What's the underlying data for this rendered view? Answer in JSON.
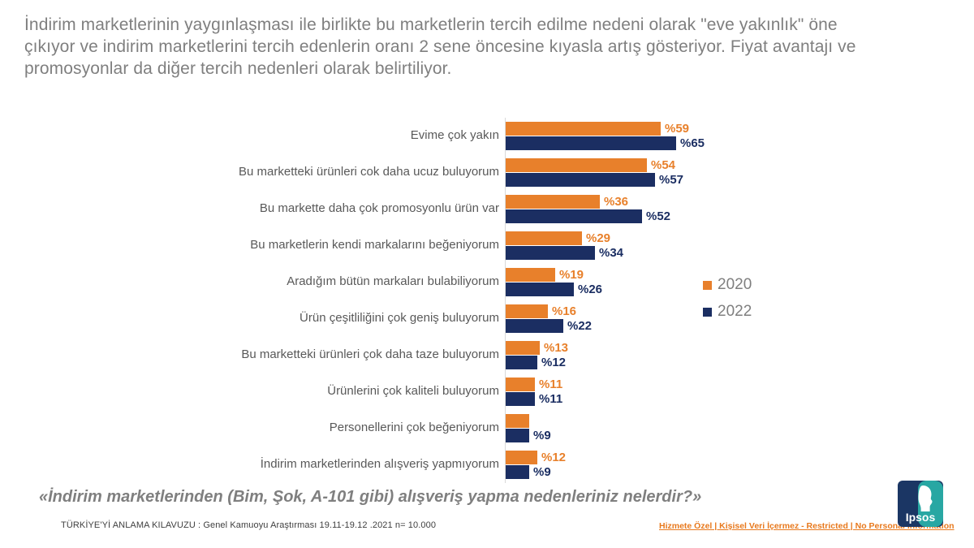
{
  "title": "İndirim marketlerinin yaygınlaşması ile birlikte bu marketlerin tercih edilme nedeni olarak \"eve yakınlık\" öne çıkıyor ve indirim marketlerini tercih edenlerin oranı 2 sene öncesine kıyasla artış gösteriyor. Fiyat avantajı ve promosyonlar da diğer tercih nedenleri olarak belirtiliyor.",
  "chart_data": {
    "type": "bar",
    "orientation": "horizontal",
    "value_prefix": "%",
    "xlim": [
      0,
      75
    ],
    "grid": false,
    "legend_position": "right-middle",
    "categories": [
      "Evime çok yakın",
      "Bu marketteki ürünleri cok daha ucuz buluyorum",
      "Bu markette daha çok promosyonlu ürün var",
      "Bu marketlerin kendi markalarını beğeniyorum",
      "Aradığım bütün markaları bulabiliyorum",
      "Ürün çeşitliliğini çok geniş buluyorum",
      "Bu marketteki ürünleri çok daha taze buluyorum",
      "Ürünlerini çok kaliteli buluyorum",
      "Personellerini çok beğeniyorum",
      "İndirim marketlerinden alışveriş yapmıyorum"
    ],
    "series": [
      {
        "name": "2020",
        "color": "#E8802B",
        "values": [
          59,
          54,
          36,
          29,
          19,
          16,
          13,
          11,
          9,
          12
        ],
        "labels": [
          "%59",
          "%54",
          "%36",
          "%29",
          "%19",
          "%16",
          "%13",
          "%11",
          "",
          "%12"
        ]
      },
      {
        "name": "2022",
        "color": "#1B2E62",
        "values": [
          65,
          57,
          52,
          34,
          26,
          22,
          12,
          11,
          9,
          9
        ],
        "labels": [
          "%65",
          "%57",
          "%52",
          "%34",
          "%26",
          "%22",
          "%12",
          "%11",
          "%9",
          "%9"
        ]
      }
    ]
  },
  "question": "«İndirim marketlerinden (Bim, Şok, A-101 gibi) alışveriş yapma nedenleriniz nelerdir?»",
  "footer": {
    "source": "TÜRKİYE'Yİ ANLAMA KILAVUZU : Genel Kamuoyu Araştırması 19.11-19.12 .2021 n= 10.000",
    "classification": "Hizmete Özel | Kişisel Veri İçermez - Restricted | No Personal Information",
    "logo_text": "Ipsos"
  },
  "colors": {
    "title_gray": "#7F7F7F",
    "category_label_gray": "#595959",
    "axis_line": "#D9D9D9",
    "link_orange": "#E8791D",
    "logo_navy": "#1B3664",
    "logo_teal": "#28A7A3",
    "logo_text_white": "#FFFFFF"
  }
}
